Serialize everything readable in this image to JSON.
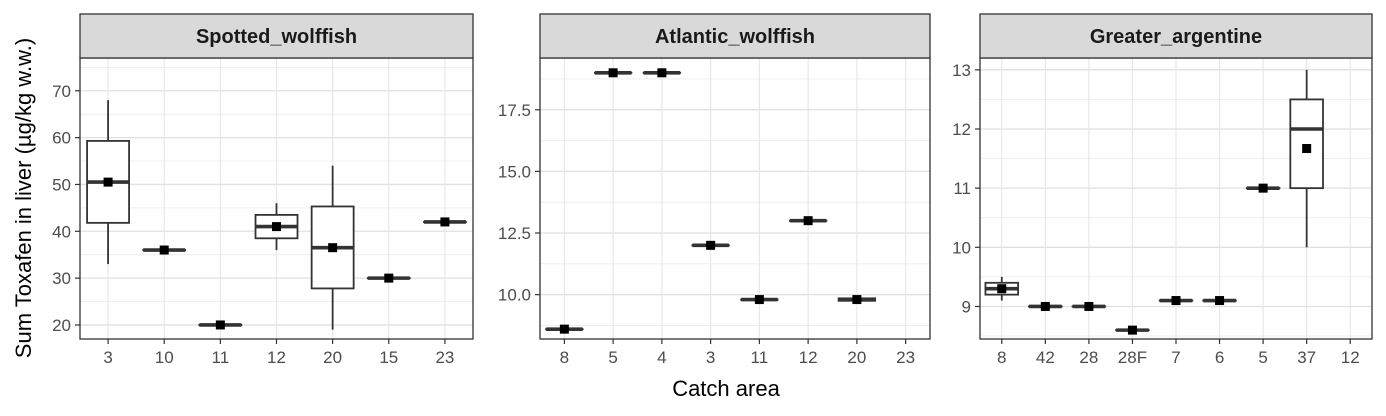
{
  "figure": {
    "ylabel": "Sum Toxafen in liver (µg/kg w.w.)",
    "xlabel": "Catch area"
  },
  "chart_data": [
    {
      "type": "box",
      "title": "Spotted_wolffish",
      "categories": [
        "3",
        "10",
        "11",
        "12",
        "20",
        "15",
        "23"
      ],
      "ylim": [
        17,
        77
      ],
      "y_ticks": [
        20,
        30,
        40,
        50,
        60,
        70
      ],
      "y_tick_labels": [
        "20",
        "30",
        "40",
        "50",
        "60",
        "70"
      ],
      "boxes": [
        {
          "x": "3",
          "min": 33,
          "q1": 41.8,
          "median": 50.5,
          "q3": 59.3,
          "max": 68,
          "mean": 50.5
        },
        {
          "x": "10",
          "min": 36,
          "q1": 36,
          "median": 36,
          "q3": 36,
          "max": 36,
          "mean": 36
        },
        {
          "x": "11",
          "min": 20,
          "q1": 20,
          "median": 20,
          "q3": 20,
          "max": 20,
          "mean": 20
        },
        {
          "x": "12",
          "min": 36,
          "q1": 38.5,
          "median": 41,
          "q3": 43.5,
          "max": 46,
          "mean": 41
        },
        {
          "x": "20",
          "min": 19,
          "q1": 27.8,
          "median": 36.5,
          "q3": 45.3,
          "max": 54,
          "mean": 36.5
        },
        {
          "x": "15",
          "min": 30,
          "q1": 30,
          "median": 30,
          "q3": 30,
          "max": 30,
          "mean": 30
        },
        {
          "x": "23",
          "min": 42,
          "q1": 42,
          "median": 42,
          "q3": 42,
          "max": 42,
          "mean": 42
        }
      ],
      "grid": true
    },
    {
      "type": "box",
      "title": "Atlantic_wolffish",
      "categories": [
        "8",
        "5",
        "4",
        "3",
        "11",
        "12",
        "20",
        "23"
      ],
      "ylim": [
        8.2,
        19.6
      ],
      "y_ticks": [
        10,
        12.5,
        15,
        17.5
      ],
      "y_tick_labels": [
        "10.0",
        "12.5",
        "15.0",
        "17.5"
      ],
      "boxes": [
        {
          "x": "8",
          "min": 8.6,
          "q1": 8.6,
          "median": 8.6,
          "q3": 8.6,
          "max": 8.6,
          "mean": 8.6
        },
        {
          "x": "5",
          "min": 19,
          "q1": 19,
          "median": 19,
          "q3": 19,
          "max": 19,
          "mean": 19
        },
        {
          "x": "4",
          "min": 19,
          "q1": 19,
          "median": 19,
          "q3": 19,
          "max": 19,
          "mean": 19
        },
        {
          "x": "3",
          "min": 12,
          "q1": 12,
          "median": 12,
          "q3": 12,
          "max": 12,
          "mean": 12
        },
        {
          "x": "11",
          "min": 9.8,
          "q1": 9.8,
          "median": 9.8,
          "q3": 9.8,
          "max": 9.8,
          "mean": 9.8
        },
        {
          "x": "12",
          "min": 13,
          "q1": 13,
          "median": 13,
          "q3": 13,
          "max": 13,
          "mean": 13
        },
        {
          "x": "20",
          "min": 9.75,
          "q1": 9.75,
          "median": 9.8,
          "q3": 9.85,
          "max": 9.85,
          "mean": 9.8
        }
      ],
      "grid": true
    },
    {
      "type": "box",
      "title": "Greater_argentine",
      "categories": [
        "8",
        "42",
        "28",
        "28F",
        "7",
        "6",
        "5",
        "37",
        "12"
      ],
      "ylim": [
        8.45,
        13.2
      ],
      "y_ticks": [
        9,
        10,
        11,
        12,
        13
      ],
      "y_tick_labels": [
        "9",
        "10",
        "11",
        "12",
        "13"
      ],
      "boxes": [
        {
          "x": "8",
          "min": 9.1,
          "q1": 9.2,
          "median": 9.3,
          "q3": 9.4,
          "max": 9.5,
          "mean": 9.3
        },
        {
          "x": "42",
          "min": 9,
          "q1": 9,
          "median": 9,
          "q3": 9,
          "max": 9,
          "mean": 9
        },
        {
          "x": "28",
          "min": 9,
          "q1": 9,
          "median": 9,
          "q3": 9,
          "max": 9,
          "mean": 9
        },
        {
          "x": "28F",
          "min": 8.6,
          "q1": 8.6,
          "median": 8.6,
          "q3": 8.6,
          "max": 8.6,
          "mean": 8.6
        },
        {
          "x": "7",
          "min": 9.1,
          "q1": 9.1,
          "median": 9.1,
          "q3": 9.1,
          "max": 9.1,
          "mean": 9.1
        },
        {
          "x": "6",
          "min": 9.1,
          "q1": 9.1,
          "median": 9.1,
          "q3": 9.1,
          "max": 9.1,
          "mean": 9.1
        },
        {
          "x": "5",
          "min": 11,
          "q1": 11,
          "median": 11,
          "q3": 11,
          "max": 11,
          "mean": 11
        },
        {
          "x": "37",
          "min": 10,
          "q1": 11,
          "median": 12,
          "q3": 12.5,
          "max": 13,
          "mean": 11.67
        }
      ],
      "grid": true
    }
  ]
}
